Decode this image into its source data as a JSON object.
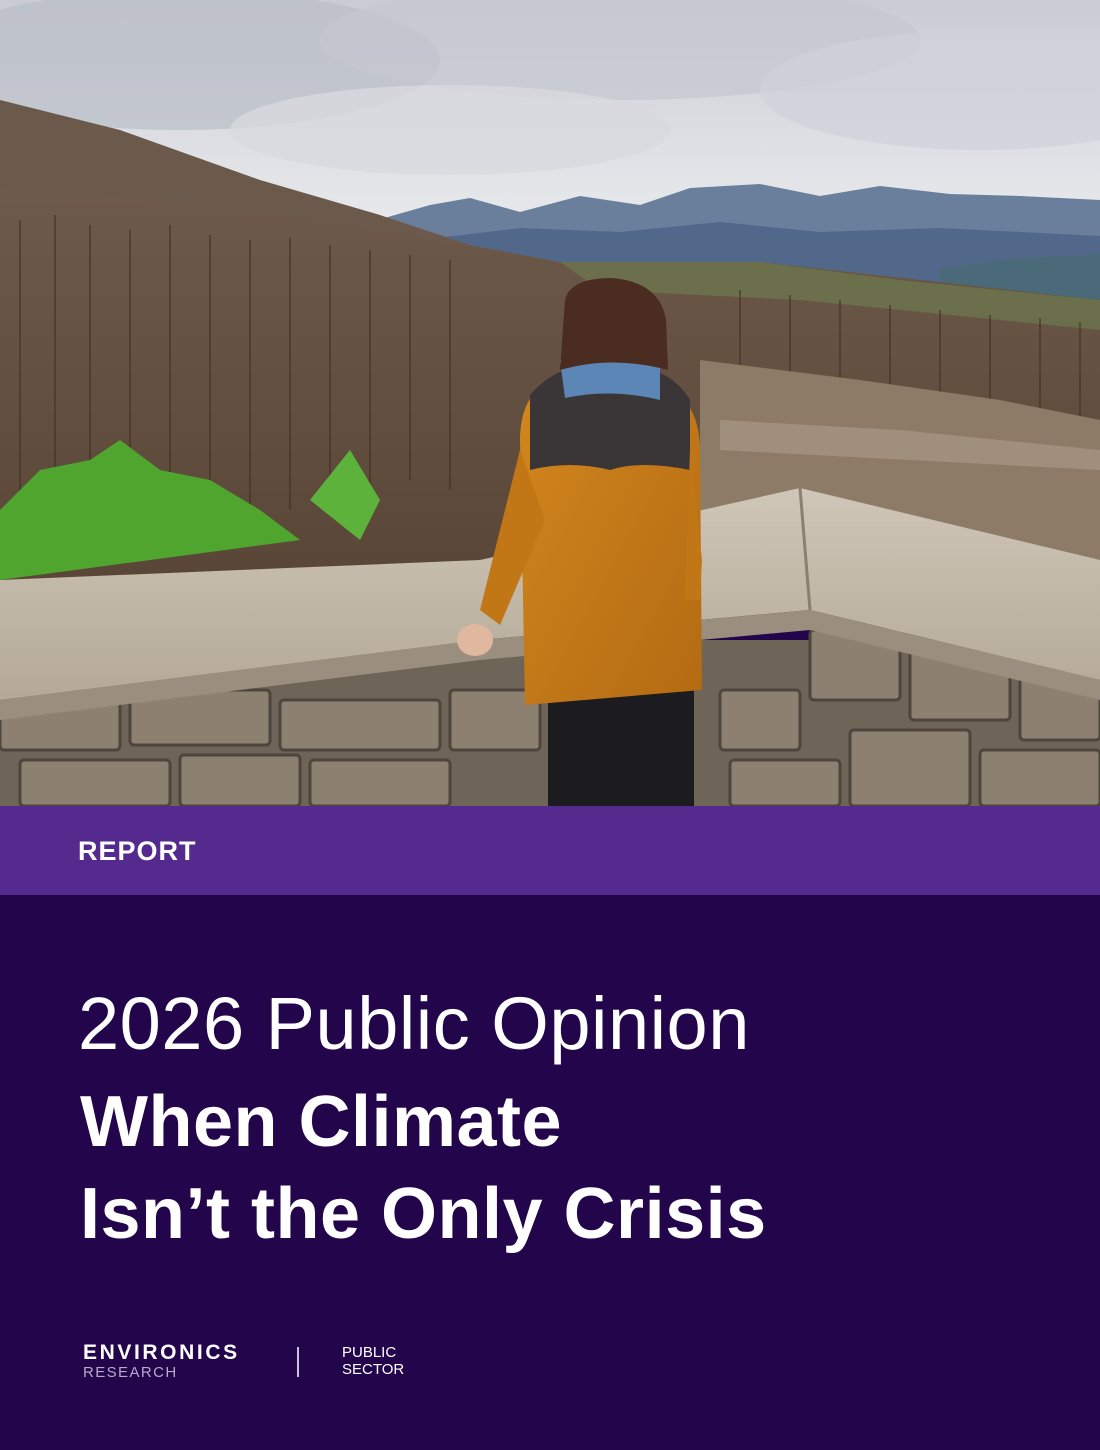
{
  "cover": {
    "photo_icon": "landscape-photo-woman-overlooking-burned-forest"
  },
  "band": {
    "label": "REPORT"
  },
  "title": {
    "line1": "2026 Public Opinion",
    "line2": "When Climate",
    "line3": "Isn’t the Only Crisis"
  },
  "footer": {
    "brand_main": "ENVIRONICS",
    "brand_sub": "RESEARCH",
    "sector_line1": "PUBLIC",
    "sector_line2": "SECTOR"
  },
  "colors": {
    "band": "#552a8e",
    "panel": "#22054a",
    "text": "#ffffff"
  }
}
